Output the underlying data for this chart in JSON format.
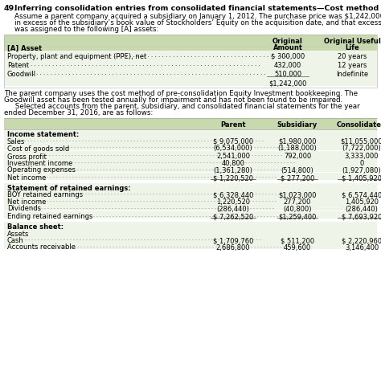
{
  "title_num": "49.",
  "title_text": "Inferring consolidation entries from consolidated financial statements—Cost method",
  "para1_lines": [
    "Assume a parent company acquired a subsidiary on January 1, 2012. The purchase price was $1,242,000",
    "in excess of the subsidiary’s book value of Stockholders’ Equity on the acquisition date, and that excess",
    "was assigned to the following [A] assets:"
  ],
  "t1_rows": [
    [
      "Property, plant and equipment (PPE), net",
      "$ 300,000",
      "20 years"
    ],
    [
      "Patent",
      "432,000",
      "12 years"
    ],
    [
      "Goodwill",
      "510,000",
      "Indefinite"
    ],
    [
      "",
      "$1,242,000",
      ""
    ]
  ],
  "para2_lines": [
    "The parent company uses the cost method of pre-consolidation Equity Investment bookkeeping. The",
    "Goodwill asset has been tested annually for impairment and has not been found to be impaired.",
    "     Selected accounts from the parent, subsidiary, and consolidated financial statements for the year",
    "ended December 31, 2016, are as follows:"
  ],
  "t2_income_section": "Income statement:",
  "t2_income_rows": [
    [
      "Sales",
      "$ 9,075,000",
      "$1,980,000",
      "$11,055,000"
    ],
    [
      "Cost of goods sold",
      "(6,534,000)",
      "(1,188,000)",
      "(7,722,000)"
    ],
    [
      "Gross profit",
      "2,541,000",
      "792,000",
      "3,333,000"
    ],
    [
      "Investment income",
      "40,800",
      "",
      "0"
    ],
    [
      "Operating expenses",
      "(1,361,280)",
      "(514,800)",
      "(1,927,080)"
    ],
    [
      "Net income",
      "$ 1,220,520",
      "$ 277,200",
      "$ 1,405,920"
    ]
  ],
  "t2_retained_section": "Statement of retained earnings:",
  "t2_retained_rows": [
    [
      "BOY retained earnings",
      "$ 6,328,440",
      "$1,023,000",
      "$ 6,574,440"
    ],
    [
      "Net income",
      "1,220,520",
      "277,200",
      "1,405,920"
    ],
    [
      "Dividends",
      "(286,440)",
      "(40,800)",
      "(286,440)"
    ],
    [
      "Ending retained earnings",
      "$ 7,262,520",
      "$1,259,400",
      "$ 7,693,920"
    ]
  ],
  "t2_balance_section": "Balance sheet:",
  "t2_balance_rows": [
    [
      "Assets",
      "",
      "",
      ""
    ],
    [
      "Cash",
      "$ 1,709,760",
      "$ 511,200",
      "$ 2,220,960"
    ],
    [
      "Accounts receivable",
      "2,686,800",
      "459,600",
      "3,146,400"
    ]
  ],
  "header_bg": "#c8d9b0",
  "row_bg": "#eff4e8",
  "bg_color": "#ffffff",
  "text_color": "#000000"
}
